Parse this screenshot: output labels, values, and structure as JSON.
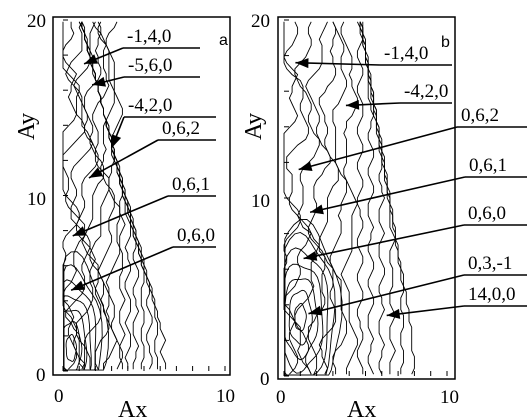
{
  "figure": {
    "panel_a": {
      "letter": "a",
      "xlabel": "Ax",
      "ylabel": "Ay",
      "x_ticks": [
        "0",
        "10"
      ],
      "y_ticks": [
        "0",
        "10",
        "20"
      ]
    },
    "panel_b": {
      "letter": "b",
      "xlabel": "Ax",
      "ylabel": "Ay",
      "x_ticks": [
        "0",
        "10"
      ],
      "y_ticks": [
        "0",
        "10",
        "20"
      ]
    }
  },
  "chart_data": [
    {
      "type": "contour",
      "panel": "a",
      "xlabel": "Ax",
      "ylabel": "Ay",
      "xlim": [
        0,
        10
      ],
      "ylim": [
        0,
        20
      ],
      "annotations": [
        {
          "text": "-1,4,0",
          "point": [
            1.3,
            17.5
          ]
        },
        {
          "text": "-5,6,0",
          "point": [
            1.8,
            16.3
          ]
        },
        {
          "text": "-4,2,0",
          "point": [
            3.0,
            12.7
          ]
        },
        {
          "text": "0,6,2",
          "point": [
            1.6,
            11.0
          ]
        },
        {
          "text": "0,6,1",
          "point": [
            0.6,
            7.7
          ]
        },
        {
          "text": "0,6,0",
          "point": [
            0.5,
            4.6
          ]
        }
      ],
      "peak": [
        0.5,
        1.3
      ]
    },
    {
      "type": "contour",
      "panel": "b",
      "xlabel": "Ax",
      "ylabel": "Ay",
      "xlim": [
        0,
        10
      ],
      "ylim": [
        0,
        20
      ],
      "annotations": [
        {
          "text": "-1,4,0",
          "point": [
            0.7,
            17.6
          ]
        },
        {
          "text": "-4,2,0",
          "point": [
            3.8,
            15.2
          ]
        },
        {
          "text": "0,6,2",
          "point": [
            0.9,
            11.6
          ]
        },
        {
          "text": "0,6,1",
          "point": [
            1.6,
            9.2
          ]
        },
        {
          "text": "0,6,0",
          "point": [
            1.2,
            6.6
          ]
        },
        {
          "text": "0,3,-1",
          "point": [
            1.5,
            3.5
          ]
        },
        {
          "text": "14,0,0",
          "point": [
            6.3,
            3.4
          ]
        }
      ],
      "peak": [
        1.0,
        3.3
      ]
    }
  ]
}
